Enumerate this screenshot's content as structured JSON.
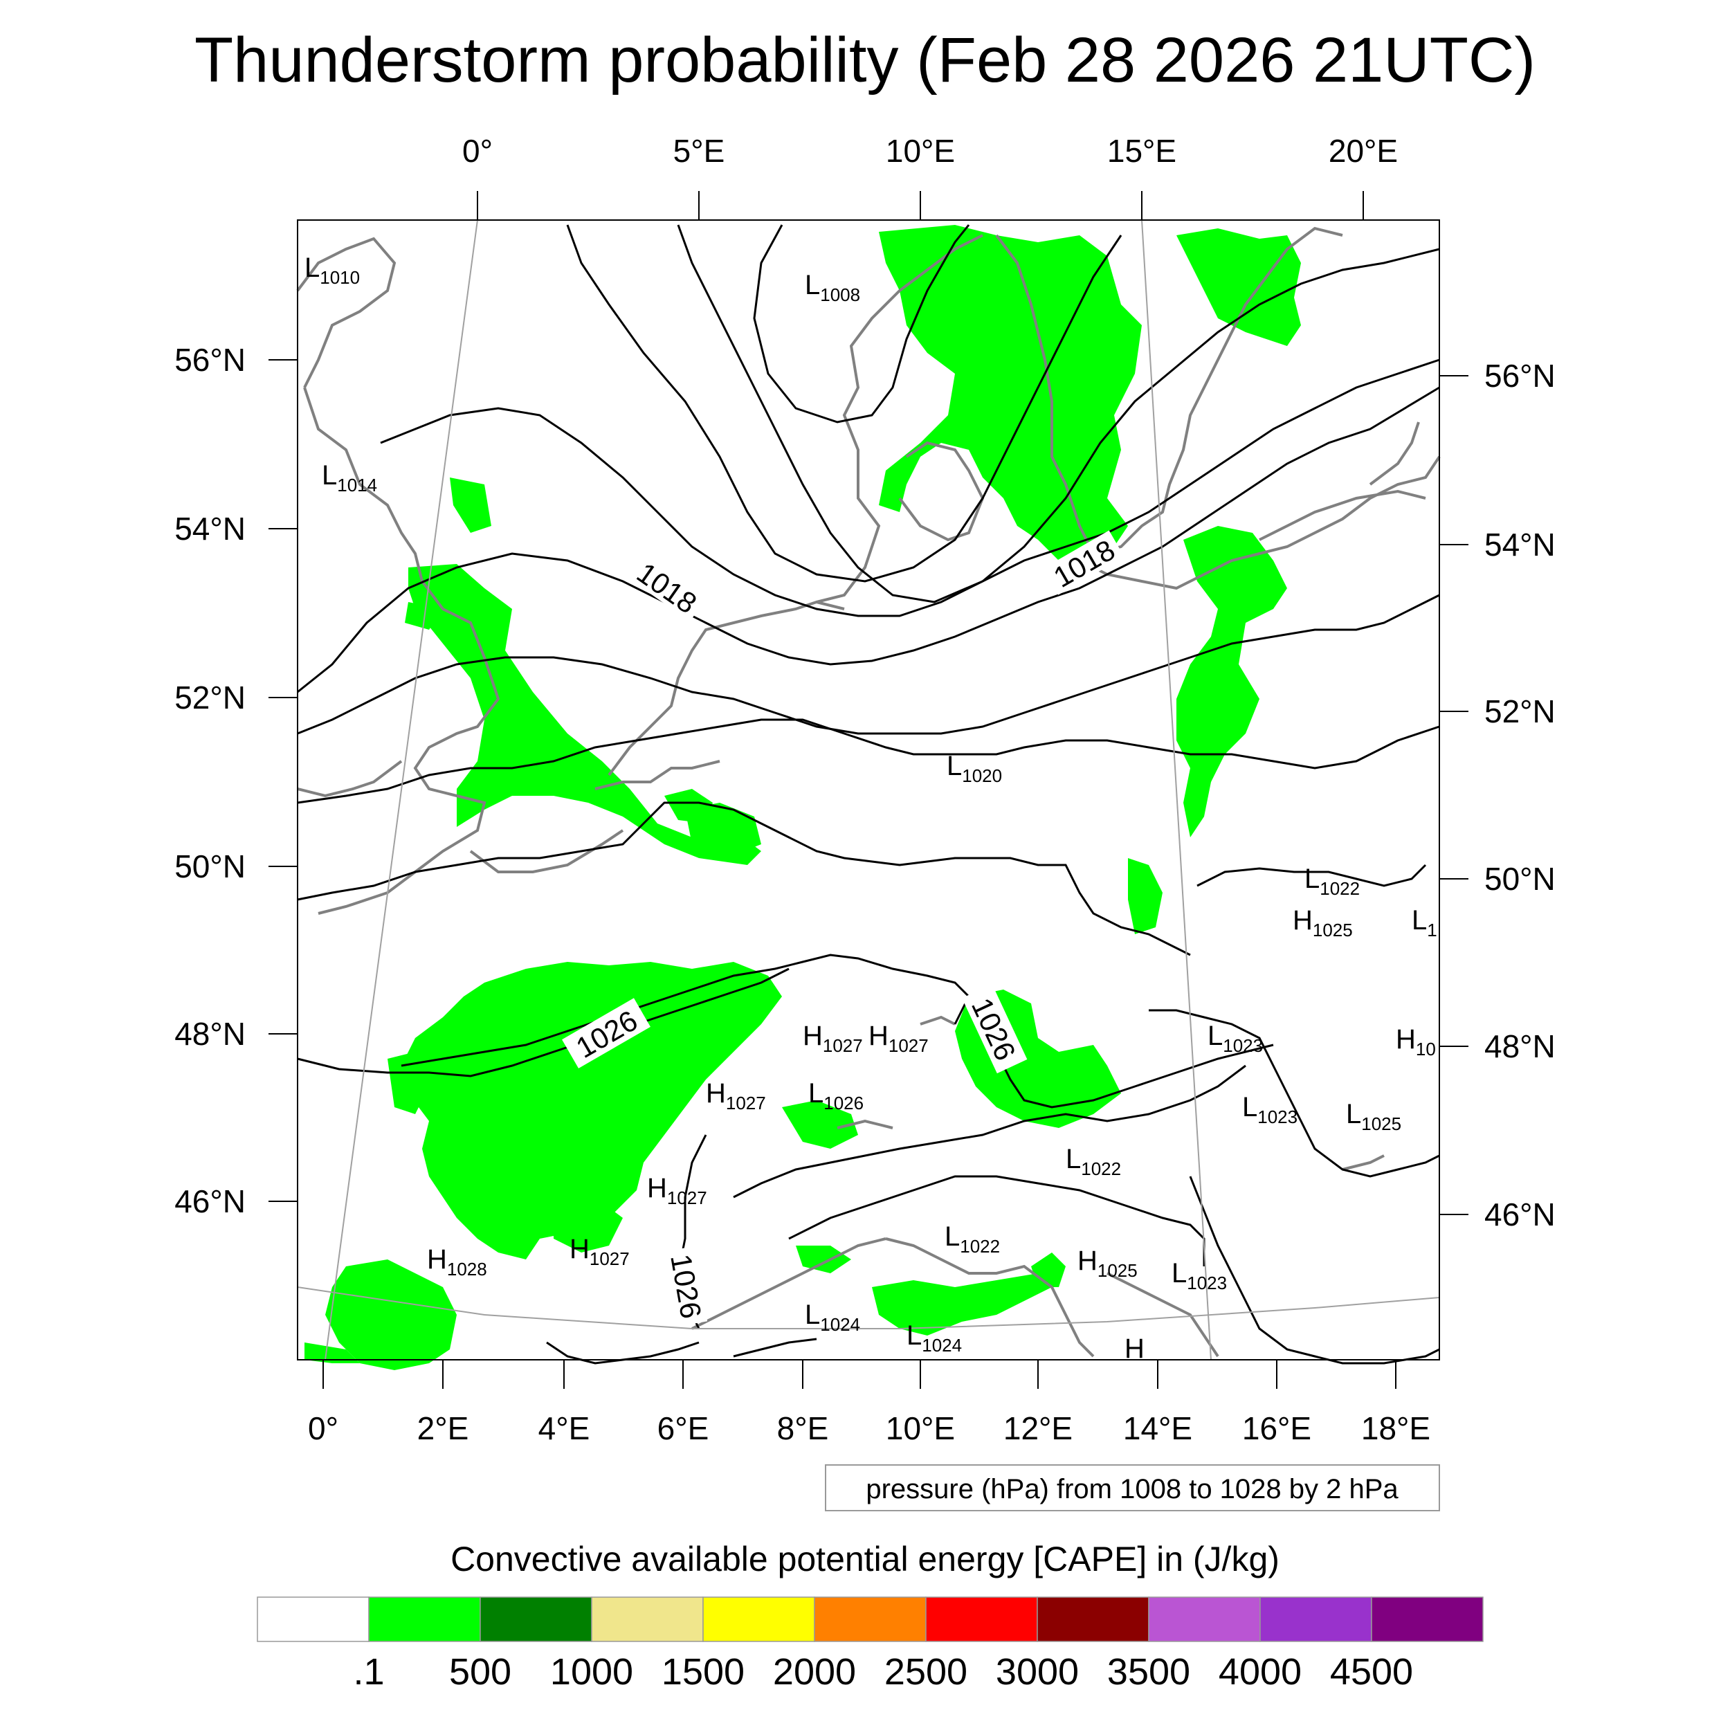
{
  "title": "Thunderstorm probability (Feb 28 2026 21UTC)",
  "top_lon_labels": [
    "0°",
    "5°E",
    "10°E",
    "15°E",
    "20°E"
  ],
  "bottom_lon_labels": [
    "0°",
    "2°E",
    "4°E",
    "6°E",
    "8°E",
    "10°E",
    "12°E",
    "14°E",
    "16°E",
    "18°E"
  ],
  "left_lat_labels": [
    "56°N",
    "54°N",
    "52°N",
    "50°N",
    "48°N",
    "46°N"
  ],
  "right_lat_labels": [
    "56°N",
    "54°N",
    "52°N",
    "50°N",
    "48°N",
    "46°N"
  ],
  "pressure_note": "pressure (hPa) from 1008 to 1028 by 2 hPa",
  "contour_labels": [
    "1018",
    "1018",
    "1026",
    "1026",
    "1026"
  ],
  "pressure_centers": [
    {
      "t": "L",
      "v": "1010"
    },
    {
      "t": "L",
      "v": "1008"
    },
    {
      "t": "L",
      "v": "1014"
    },
    {
      "t": "L",
      "v": "1020"
    },
    {
      "t": "L",
      "v": "1022"
    },
    {
      "t": "H",
      "v": "1025"
    },
    {
      "t": "L",
      "v": "1"
    },
    {
      "t": "H",
      "v": "1027"
    },
    {
      "t": "H",
      "v": "1027"
    },
    {
      "t": "L",
      "v": "1023"
    },
    {
      "t": "H",
      "v": "10"
    },
    {
      "t": "H",
      "v": "1027"
    },
    {
      "t": "L",
      "v": "1026"
    },
    {
      "t": "L",
      "v": "1023"
    },
    {
      "t": "L",
      "v": "1025"
    },
    {
      "t": "L",
      "v": "1022"
    },
    {
      "t": "H",
      "v": "1027"
    },
    {
      "t": "H",
      "v": "1028"
    },
    {
      "t": "H",
      "v": "1027"
    },
    {
      "t": "L",
      "v": "1022"
    },
    {
      "t": "H",
      "v": "1025"
    },
    {
      "t": "L",
      "v": "1023"
    },
    {
      "t": "L",
      "v": "1024"
    },
    {
      "t": "L",
      "v": "1024"
    },
    {
      "t": "H",
      "v": ""
    }
  ],
  "colorbar": {
    "title": "Convective available potential energy [CAPE] in (J/kg)",
    "colors": [
      "#ffffff",
      "#00ff00",
      "#008000",
      "#f0e68c",
      "#ffff00",
      "#ff8000",
      "#ff0000",
      "#8b0000",
      "#ba55d3",
      "#9932cc",
      "#800080"
    ],
    "labels": [
      ".1",
      "500",
      "1000",
      "1500",
      "2000",
      "2500",
      "3000",
      "3500",
      "4000",
      "4500"
    ]
  },
  "colors": {
    "cape_low": "#00ff00",
    "coast": "#808080",
    "isobar": "#000000"
  }
}
